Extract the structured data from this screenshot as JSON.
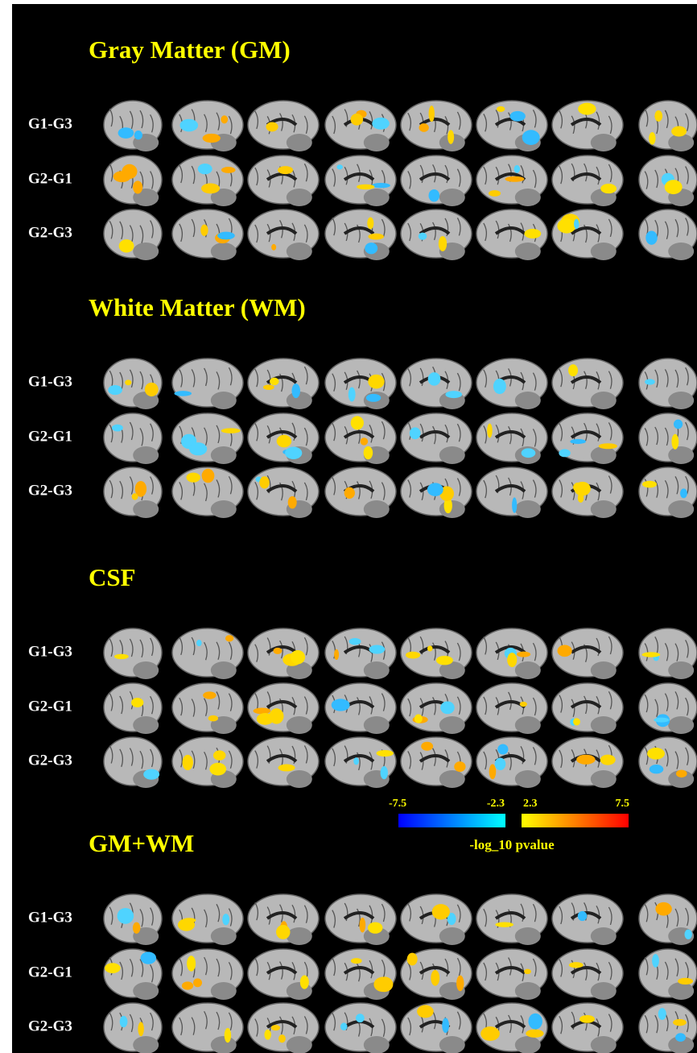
{
  "sections": [
    {
      "title": "Gray Matter (GM)",
      "rows": [
        "G1-G3",
        "G2-G1",
        "G2-G3"
      ]
    },
    {
      "title": "White Matter (WM)",
      "rows": [
        "G1-G3",
        "G2-G1",
        "G2-G3"
      ]
    },
    {
      "title": "CSF",
      "rows": [
        "G1-G3",
        "G2-G1",
        "G2-G3"
      ]
    },
    {
      "title": "GM+WM",
      "rows": [
        "G1-G3",
        "G2-G1",
        "G2-G3"
      ]
    }
  ],
  "colorbar": {
    "negative_min": "-7.5",
    "negative_max": "-2.3",
    "positive_min": "2.3",
    "positive_max": "7.5",
    "label": "-log_10 pvalue"
  }
}
